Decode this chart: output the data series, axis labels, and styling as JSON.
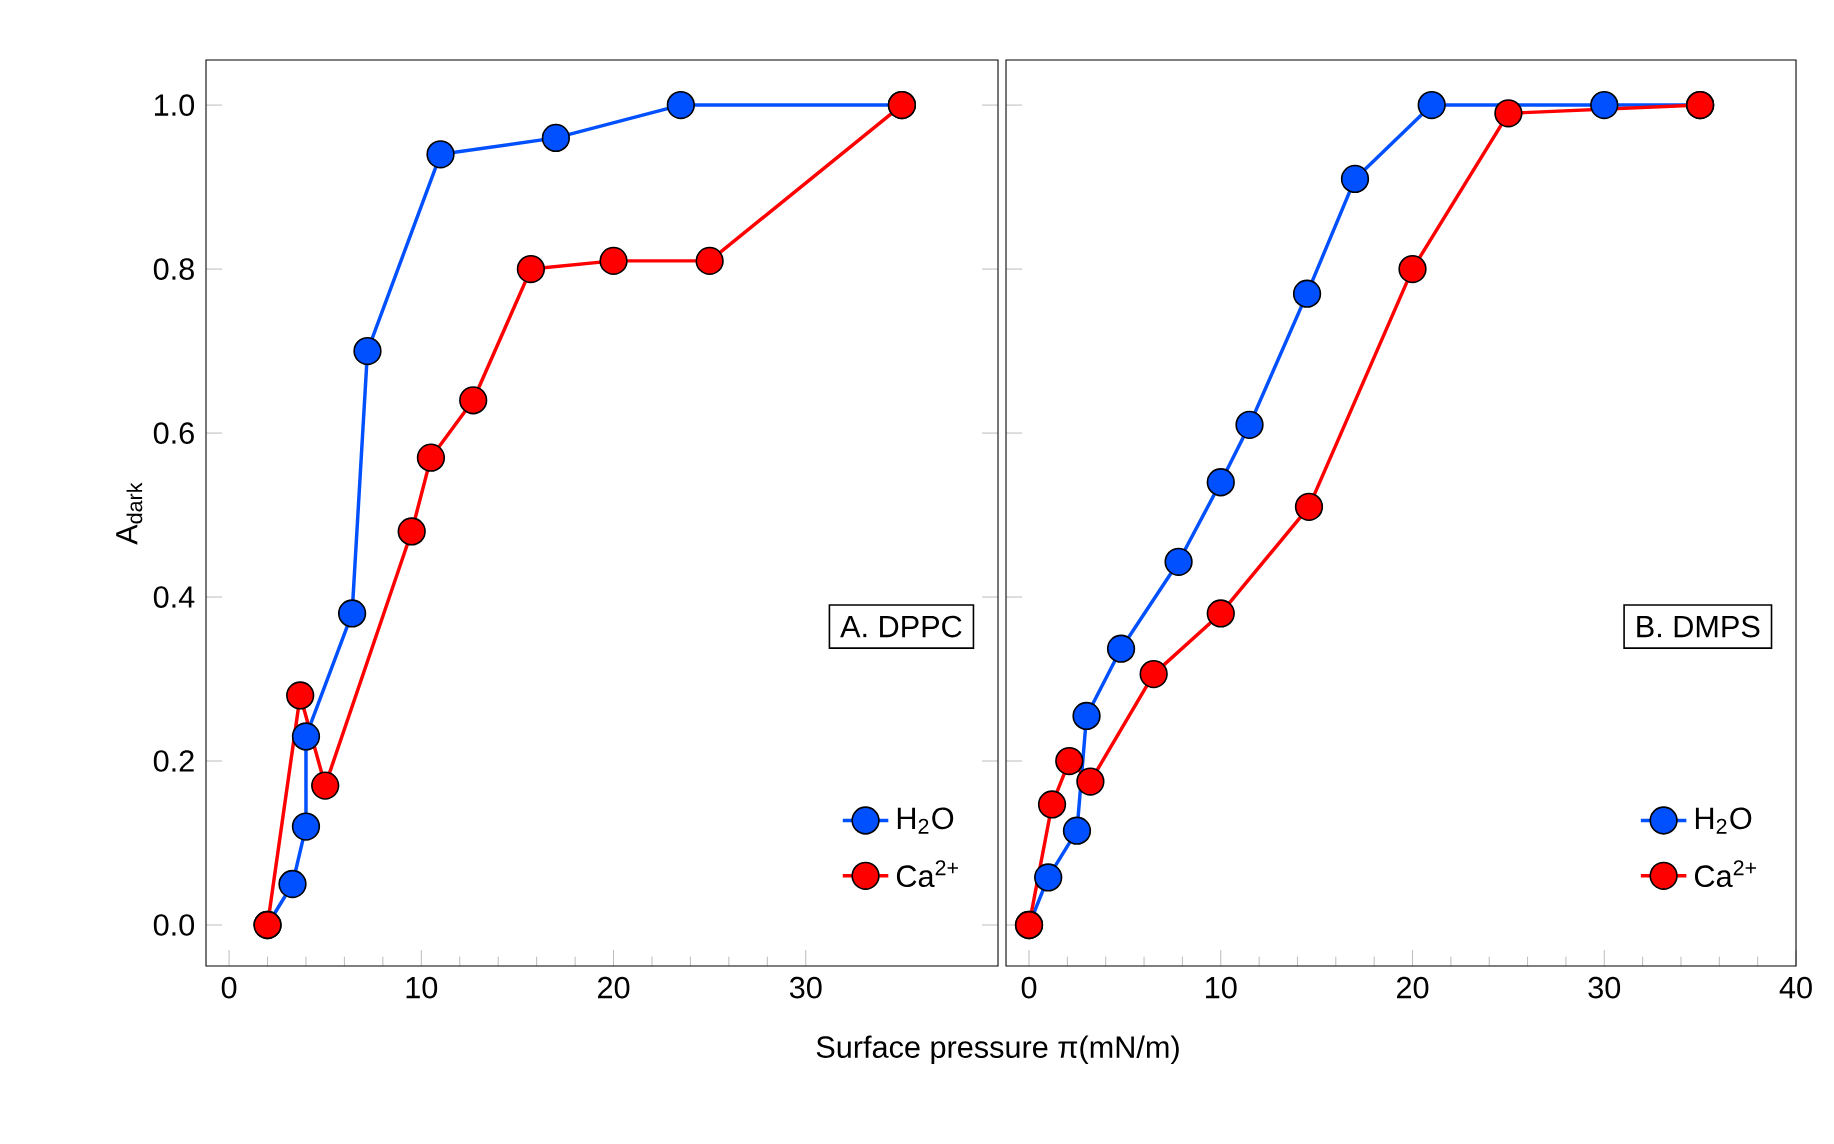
{
  "chart_data": [
    {
      "type": "line",
      "title": "A. DPPC",
      "ylabel": "A$_{dark}$",
      "xlabel": "Surface pressure π(mN/m)",
      "xlim": [
        -1.2,
        40
      ],
      "ylim": [
        -0.05,
        1.055
      ],
      "xticks": [
        0,
        10,
        20,
        30
      ],
      "yticks": [
        {
          "value": 0,
          "label": "0.0"
        },
        0.2,
        0.4,
        0.6,
        0.8,
        {
          "value": 1,
          "label": "1.0"
        }
      ],
      "legend": "bottom right",
      "marker": "circle",
      "line_style": "solid",
      "series": [
        {
          "name": "H$_{2}$O",
          "color": "#0050ff",
          "x": [
            2,
            3.3,
            4,
            4,
            6.4,
            7.2,
            11,
            17,
            23.5,
            35
          ],
          "values": [
            0,
            0.05,
            0.12,
            0.23,
            0.38,
            0.7,
            0.94,
            0.96,
            1.0,
            1.0
          ]
        },
        {
          "name": "Ca$^{2+}$",
          "color": "#ff0000",
          "x": [
            2,
            3.7,
            5,
            9.5,
            10.5,
            12.7,
            15.7,
            20,
            25,
            35
          ],
          "values": [
            0,
            0.28,
            0.17,
            0.48,
            0.57,
            0.64,
            0.8,
            0.81,
            0.81,
            1.0
          ]
        }
      ]
    },
    {
      "type": "line",
      "title": "B. DMPS",
      "xlim": [
        -1.2,
        40
      ],
      "ylim": [
        -0.05,
        1.055
      ],
      "xticks": [
        0,
        10,
        20,
        30,
        40
      ],
      "yticks": [
        0.0,
        0.2,
        0.4,
        0.6,
        0.8,
        1.0
      ],
      "tick_labels": "x",
      "legend": "bottom right",
      "marker": "circle",
      "line_style": "solid",
      "series": [
        {
          "name": "H$_{2}$O",
          "color": "#0050ff",
          "x": [
            0,
            1,
            2.5,
            3,
            4.8,
            7.8,
            10,
            11.5,
            14.5,
            17,
            21,
            30,
            35
          ],
          "values": [
            0,
            0.058,
            0.115,
            0.255,
            0.337,
            0.443,
            0.54,
            0.61,
            0.77,
            0.91,
            1.0,
            1.0,
            1.0
          ]
        },
        {
          "name": "Ca$^{2+}$",
          "color": "#ff0000",
          "x": [
            0,
            1.2,
            2.1,
            3.2,
            6.5,
            10,
            14.6,
            20,
            25,
            35
          ],
          "values": [
            0,
            0.147,
            0.2,
            0.175,
            0.306,
            0.38,
            0.51,
            0.8,
            0.99,
            1.0
          ]
        }
      ]
    }
  ]
}
